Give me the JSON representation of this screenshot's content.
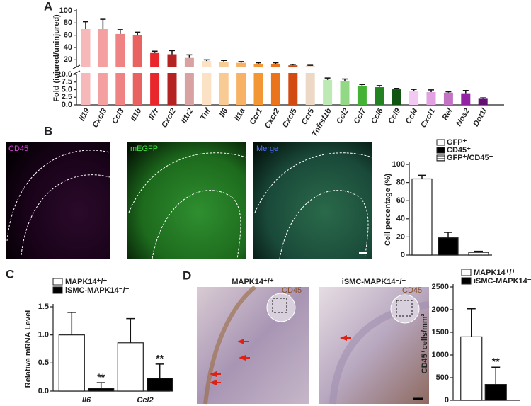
{
  "chart_data": [
    {
      "type": "bar",
      "panel_label": "A",
      "ylabel": "Fold (injured/uninjured)",
      "broken_axis": true,
      "categories": [
        "Il19",
        "Cxcl3",
        "Ccl3",
        "Il1b",
        "Il7r",
        "Cxcl2",
        "Il1r2",
        "Tnf",
        "Il6",
        "Il1a",
        "Ccr1",
        "Cxcr2",
        "Cxcl5",
        "Ccr5",
        "Tnfrsf1b",
        "Ccl2",
        "Ccl7",
        "Ccl6",
        "Ccl9",
        "Ccl4",
        "Cxcl1",
        "Rel",
        "Nos2",
        "Dot1l"
      ],
      "values": [
        70,
        70,
        62,
        60,
        31,
        29,
        23,
        18,
        16,
        15,
        13,
        13,
        11,
        10.5,
        8.2,
        7.7,
        6.2,
        5.8,
        5.1,
        4.5,
        4.2,
        4.0,
        3.8,
        2.0
      ],
      "errors": [
        12,
        16,
        7,
        5,
        3,
        6,
        5,
        2,
        3,
        2,
        2,
        2,
        1.5,
        0.5,
        0.6,
        0.8,
        0.5,
        0.5,
        0.3,
        0.6,
        0.7,
        0.3,
        0.9,
        0.3
      ],
      "colors": [
        "#f6b8b8",
        "#f4a0a0",
        "#ef8282",
        "#e96262",
        "#e8262c",
        "#b52222",
        "#d9a2a2",
        "#fbe2c4",
        "#f9cb94",
        "#f7b266",
        "#f39634",
        "#ea741c",
        "#d24c12",
        "#ecd8c4",
        "#bdeab4",
        "#93d884",
        "#44b234",
        "#238323",
        "#125512",
        "#f2c9f2",
        "#e2a2e2",
        "#c373c3",
        "#9324a3",
        "#621173"
      ],
      "ylim_lower": [
        0,
        10
      ],
      "ylim_upper": [
        10,
        100
      ],
      "yticks_lower": [
        {
          "value": 0,
          "label": "0.0"
        },
        2.5,
        {
          "value": 5,
          "label": "5.0"
        },
        7.5,
        {
          "value": 10,
          "label": "10.0"
        }
      ],
      "yticks_upper": [
        20,
        40,
        60,
        80,
        100
      ]
    },
    {
      "type": "bar",
      "panel_label": "B",
      "image_labels": [
        "CD45",
        "mEGFP",
        "Merge"
      ],
      "ylabel": "Cell percentage (%)",
      "categories": [
        "GFP⁺",
        "CD45⁺",
        "GFP⁺/CD45⁺"
      ],
      "values": [
        84,
        19,
        3
      ],
      "errors": [
        4,
        6,
        1.2
      ],
      "colors": [
        "#ffffff",
        "#000000",
        "#bbbbbb"
      ],
      "ylim": [
        0,
        100
      ],
      "yticks": [
        0,
        20,
        40,
        60,
        80,
        100
      ]
    },
    {
      "type": "grouped_bar",
      "panel_label": "C",
      "ylabel": "Relative mRNA Level",
      "categories": [
        "Il6",
        "Ccl2"
      ],
      "series": [
        {
          "name": "MAPK14⁺/⁺",
          "color": "#ffffff",
          "values": [
            1.0,
            0.86
          ],
          "errors": [
            0.4,
            0.43
          ]
        },
        {
          "name": "iSMC-MAPK14⁻/⁻",
          "color": "#000000",
          "values": [
            0.05,
            0.23
          ],
          "errors": [
            0.1,
            0.25
          ]
        }
      ],
      "annotations": [
        "**",
        "**"
      ],
      "ylim": [
        0,
        1.5
      ],
      "yticks": [
        {
          "value": 0,
          "label": "0.0"
        },
        0.5,
        {
          "value": 1,
          "label": "1.0"
        },
        1.5
      ]
    },
    {
      "type": "grouped_bar",
      "panel_label": "D",
      "image_labels": [
        "MAPK14⁺/⁺",
        "iSMC-MAPK14⁻/⁻",
        "CD45",
        "CD45"
      ],
      "ylabel": "CD45⁺cells/mm²",
      "categories": [
        null
      ],
      "series": [
        {
          "name": "MAPK14⁺/⁺",
          "color": "#ffffff",
          "values": [
            1400
          ],
          "errors": [
            620
          ]
        },
        {
          "name": "iSMC-MAPK14⁻/⁻",
          "color": "#000000",
          "values": [
            350
          ],
          "errors": [
            380
          ]
        }
      ],
      "annotations": [
        "**"
      ],
      "ylim": [
        0,
        2500
      ],
      "yticks": [
        0,
        500,
        1000,
        1500,
        2000,
        2500
      ]
    }
  ]
}
